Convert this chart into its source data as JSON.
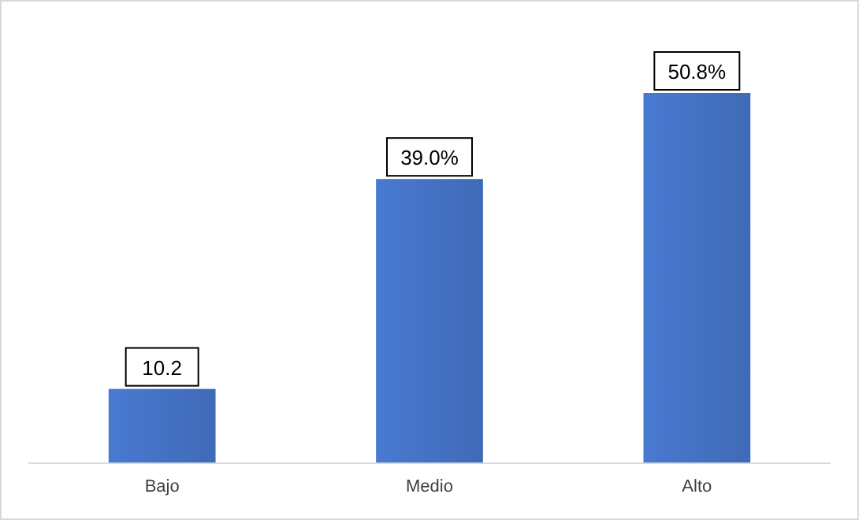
{
  "chart_data": {
    "type": "bar",
    "categories": [
      "Bajo",
      "Medio",
      "Alto"
    ],
    "values": [
      10.2,
      39.0,
      50.8
    ],
    "color": "#4472c4",
    "value_labels": [
      "10.2",
      "39.0%",
      "50.8%"
    ]
  }
}
